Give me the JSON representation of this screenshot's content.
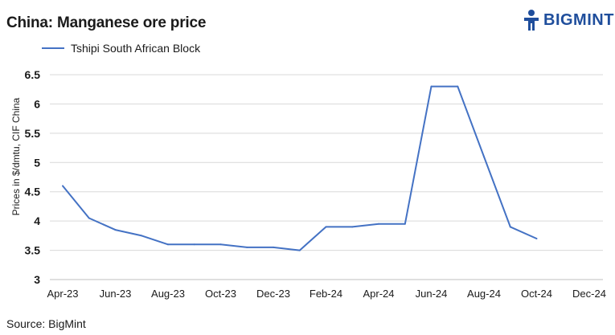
{
  "brand": {
    "name": "BIGMINT",
    "icon": "bigmint-logo-icon",
    "color": "#1f4e9c"
  },
  "source": "Source: BigMint",
  "chart_data": {
    "type": "line",
    "title": "China: Manganese ore price",
    "ylabel": "Prices in $/dmtu, CIF China",
    "xlabel": "",
    "ylim": [
      3,
      6.5
    ],
    "yticks": [
      "3",
      "3.5",
      "4",
      "4.5",
      "5",
      "5.5",
      "6",
      "6.5"
    ],
    "xticks": [
      "Apr-23",
      "Jun-23",
      "Aug-23",
      "Oct-23",
      "Dec-23",
      "Feb-24",
      "Apr-24",
      "Jun-24",
      "Aug-24",
      "Oct-24",
      "Dec-24"
    ],
    "grid": "horizontal",
    "legend_position": "top-left",
    "series": [
      {
        "name": "Tshipi South African Block",
        "color": "#4472c4",
        "x": [
          "Apr-23",
          "May-23",
          "Jun-23",
          "Jul-23",
          "Aug-23",
          "Sep-23",
          "Oct-23",
          "Nov-23",
          "Dec-23",
          "Jan-24",
          "Feb-24",
          "Mar-24",
          "Apr-24",
          "May-24",
          "Jun-24",
          "Jul-24",
          "Aug-24",
          "Sep-24",
          "Oct-24"
        ],
        "values": [
          4.6,
          4.05,
          3.85,
          3.75,
          3.6,
          3.6,
          3.6,
          3.55,
          3.55,
          3.5,
          3.9,
          3.9,
          3.95,
          3.95,
          6.3,
          6.3,
          5.1,
          3.9,
          3.7
        ]
      }
    ]
  }
}
